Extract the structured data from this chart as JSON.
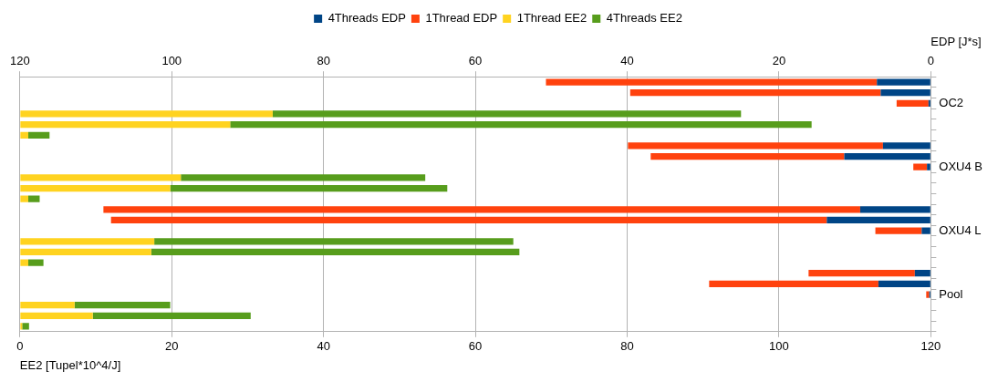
{
  "chart_data": {
    "type": "bar",
    "orientation": "horizontal",
    "stacked": true,
    "categories": [
      null,
      null,
      "OC2",
      null,
      null,
      null,
      null,
      null,
      "OXU4 B",
      null,
      null,
      null,
      null,
      null,
      "OXU4 L",
      null,
      null,
      null,
      null,
      null,
      "Pool",
      null,
      null,
      null
    ],
    "series": [
      {
        "name": "4Threads EDP",
        "color": "#004586",
        "axis": "x2",
        "values": [
          7.1,
          6.6,
          0.3,
          null,
          null,
          null,
          6.3,
          11.4,
          0.5,
          null,
          null,
          null,
          9.3,
          13.7,
          1.2,
          null,
          null,
          null,
          2.1,
          6.9,
          0.2,
          null,
          null,
          null
        ]
      },
      {
        "name": "1Thread EDP",
        "color": "#ff420e",
        "axis": "x2",
        "values": [
          43.6,
          33.0,
          4.2,
          null,
          null,
          null,
          33.6,
          25.5,
          1.8,
          null,
          null,
          null,
          99.7,
          94.3,
          6.1,
          null,
          null,
          null,
          14.0,
          22.3,
          0.4,
          null,
          null,
          null
        ]
      },
      {
        "name": "1Thread EE2",
        "color": "#ffd320",
        "values": [
          null,
          null,
          null,
          33.3,
          27.7,
          1.1,
          null,
          null,
          null,
          21.2,
          19.8,
          1.1,
          null,
          null,
          null,
          17.7,
          17.3,
          1.1,
          null,
          null,
          null,
          7.2,
          9.6,
          0.3
        ]
      },
      {
        "name": "4Threads EE2",
        "color": "#579d1c",
        "values": [
          null,
          null,
          null,
          61.7,
          76.6,
          2.8,
          null,
          null,
          null,
          32.2,
          36.5,
          1.5,
          null,
          null,
          null,
          47.3,
          48.5,
          2.0,
          null,
          null,
          null,
          12.6,
          20.8,
          0.9
        ]
      }
    ],
    "xlabel": "EE2 [Tupel*10^4/J]",
    "xlim": [
      0,
      120
    ],
    "xticks": [
      0,
      20,
      40,
      60,
      80,
      100,
      120
    ],
    "x2label": "EDP [J*s]",
    "x2lim": [
      120,
      0
    ],
    "x2ticks": [
      120,
      100,
      80,
      60,
      40,
      20,
      0
    ],
    "grid": "x",
    "legend": "top"
  }
}
